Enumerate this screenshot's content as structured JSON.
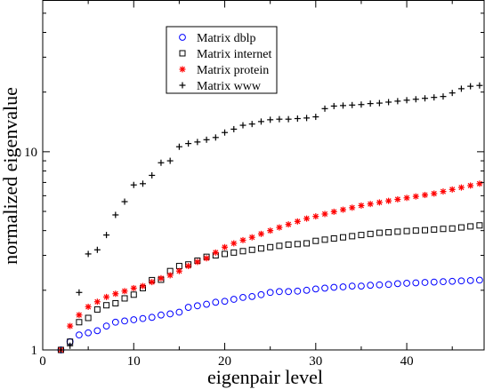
{
  "chart_data": {
    "type": "scatter",
    "xlabel": "eigenpair level",
    "ylabel": "normalized eigenvalue",
    "yscale": "log",
    "xlim": [
      0,
      48.5
    ],
    "ylim": [
      1,
      58
    ],
    "x_ticks": [
      0,
      10,
      20,
      30,
      40
    ],
    "x_tick_labels": [
      "0",
      "10",
      "20",
      "30",
      "40"
    ],
    "y_ticks": [
      1,
      10
    ],
    "y_tick_labels": [
      "1",
      "10"
    ],
    "grid": false,
    "legend_position": "top-center",
    "series": [
      {
        "name": "Matrix dblp",
        "marker": "circle",
        "color": "#0000ff",
        "x": [
          2,
          3,
          4,
          5,
          6,
          7,
          8,
          9,
          10,
          11,
          12,
          13,
          14,
          15,
          16,
          17,
          18,
          19,
          20,
          21,
          22,
          23,
          24,
          25,
          26,
          27,
          28,
          29,
          30,
          31,
          32,
          33,
          34,
          35,
          36,
          37,
          38,
          39,
          40,
          41,
          42,
          43,
          44,
          45,
          46,
          47,
          48
        ],
        "y": [
          1.0,
          1.1,
          1.19,
          1.22,
          1.25,
          1.32,
          1.38,
          1.4,
          1.42,
          1.44,
          1.46,
          1.5,
          1.52,
          1.55,
          1.64,
          1.67,
          1.7,
          1.74,
          1.76,
          1.8,
          1.84,
          1.86,
          1.9,
          1.95,
          1.97,
          1.97,
          1.98,
          2.0,
          2.03,
          2.05,
          2.07,
          2.08,
          2.1,
          2.1,
          2.12,
          2.13,
          2.14,
          2.16,
          2.17,
          2.18,
          2.19,
          2.2,
          2.21,
          2.22,
          2.23,
          2.24,
          2.25
        ]
      },
      {
        "name": "Matrix internet",
        "marker": "square",
        "color": "#000000",
        "x": [
          2,
          3,
          4,
          5,
          6,
          7,
          8,
          9,
          10,
          11,
          12,
          13,
          14,
          15,
          16,
          17,
          18,
          19,
          20,
          21,
          22,
          23,
          24,
          25,
          26,
          27,
          28,
          29,
          30,
          31,
          32,
          33,
          34,
          35,
          36,
          37,
          38,
          39,
          40,
          41,
          42,
          43,
          44,
          45,
          46,
          47,
          48
        ],
        "y": [
          1.0,
          1.1,
          1.38,
          1.45,
          1.6,
          1.68,
          1.72,
          1.82,
          1.9,
          2.05,
          2.25,
          2.26,
          2.5,
          2.65,
          2.7,
          2.82,
          2.95,
          3.0,
          3.05,
          3.1,
          3.15,
          3.2,
          3.25,
          3.3,
          3.35,
          3.4,
          3.42,
          3.45,
          3.55,
          3.6,
          3.65,
          3.7,
          3.75,
          3.8,
          3.85,
          3.9,
          3.92,
          3.95,
          3.98,
          4.0,
          4.02,
          4.05,
          4.08,
          4.1,
          4.15,
          4.2,
          4.25
        ]
      },
      {
        "name": "Matrix protein",
        "marker": "asterisk",
        "color": "#ff0000",
        "x": [
          2,
          3,
          4,
          5,
          6,
          7,
          8,
          9,
          10,
          11,
          12,
          13,
          14,
          15,
          16,
          17,
          18,
          19,
          20,
          21,
          22,
          23,
          24,
          25,
          26,
          27,
          28,
          29,
          30,
          31,
          32,
          33,
          34,
          35,
          36,
          37,
          38,
          39,
          40,
          41,
          42,
          43,
          44,
          45,
          46,
          47,
          48
        ],
        "y": [
          1.0,
          1.32,
          1.5,
          1.65,
          1.75,
          1.85,
          1.92,
          1.98,
          2.05,
          2.1,
          2.2,
          2.3,
          2.38,
          2.5,
          2.65,
          2.78,
          2.9,
          3.1,
          3.3,
          3.45,
          3.58,
          3.7,
          3.85,
          4.0,
          4.15,
          4.3,
          4.45,
          4.6,
          4.72,
          4.85,
          4.98,
          5.1,
          5.22,
          5.35,
          5.45,
          5.55,
          5.65,
          5.75,
          5.85,
          5.95,
          6.05,
          6.15,
          6.3,
          6.45,
          6.6,
          6.75,
          6.9
        ]
      },
      {
        "name": "Matrix www",
        "marker": "plus",
        "color": "#000000",
        "x": [
          2,
          3,
          4,
          5,
          6,
          7,
          8,
          9,
          10,
          11,
          12,
          13,
          14,
          15,
          16,
          17,
          18,
          19,
          20,
          21,
          22,
          23,
          24,
          25,
          26,
          27,
          28,
          29,
          30,
          31,
          32,
          33,
          34,
          35,
          36,
          37,
          38,
          39,
          40,
          41,
          42,
          43,
          44,
          45,
          46,
          47,
          48
        ],
        "y": [
          1.0,
          1.05,
          1.95,
          3.05,
          3.2,
          3.8,
          4.8,
          5.6,
          6.8,
          6.9,
          7.6,
          8.8,
          9.0,
          10.6,
          11.0,
          11.2,
          11.5,
          11.8,
          12.5,
          13.0,
          13.6,
          13.8,
          14.2,
          14.5,
          14.6,
          14.6,
          14.7,
          14.8,
          15.0,
          16.5,
          17.0,
          17.1,
          17.2,
          17.3,
          17.5,
          17.6,
          17.8,
          18.0,
          18.2,
          18.4,
          18.6,
          18.8,
          19.0,
          19.8,
          20.8,
          21.4,
          21.6
        ]
      }
    ]
  }
}
